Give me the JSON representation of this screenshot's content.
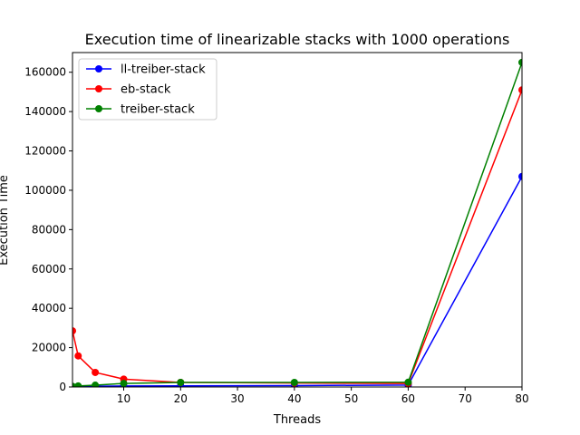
{
  "chart_data": {
    "type": "line",
    "title": "Execution time of linearizable stacks with 1000 operations",
    "xlabel": "Threads",
    "ylabel": "Execution Time",
    "xlim": [
      1,
      80
    ],
    "ylim": [
      0,
      170000
    ],
    "xticks": [
      10,
      20,
      30,
      40,
      50,
      60,
      70,
      80
    ],
    "yticks": [
      0,
      20000,
      40000,
      60000,
      80000,
      100000,
      120000,
      140000,
      160000
    ],
    "grid": false,
    "legend": "top-left",
    "x": [
      1,
      2,
      5,
      10,
      20,
      40,
      60,
      80
    ],
    "series": [
      {
        "name": "ll-treiber-stack",
        "color": "#0000ff",
        "values": [
          200,
          300,
          400,
          500,
          600,
          700,
          1000,
          107000
        ]
      },
      {
        "name": "eb-stack",
        "color": "#ff0000",
        "values": [
          28500,
          15800,
          7400,
          4000,
          2300,
          2000,
          1800,
          151000
        ]
      },
      {
        "name": "treiber-stack",
        "color": "#008000",
        "values": [
          300,
          500,
          900,
          1800,
          2300,
          2300,
          2400,
          165000
        ]
      }
    ]
  }
}
